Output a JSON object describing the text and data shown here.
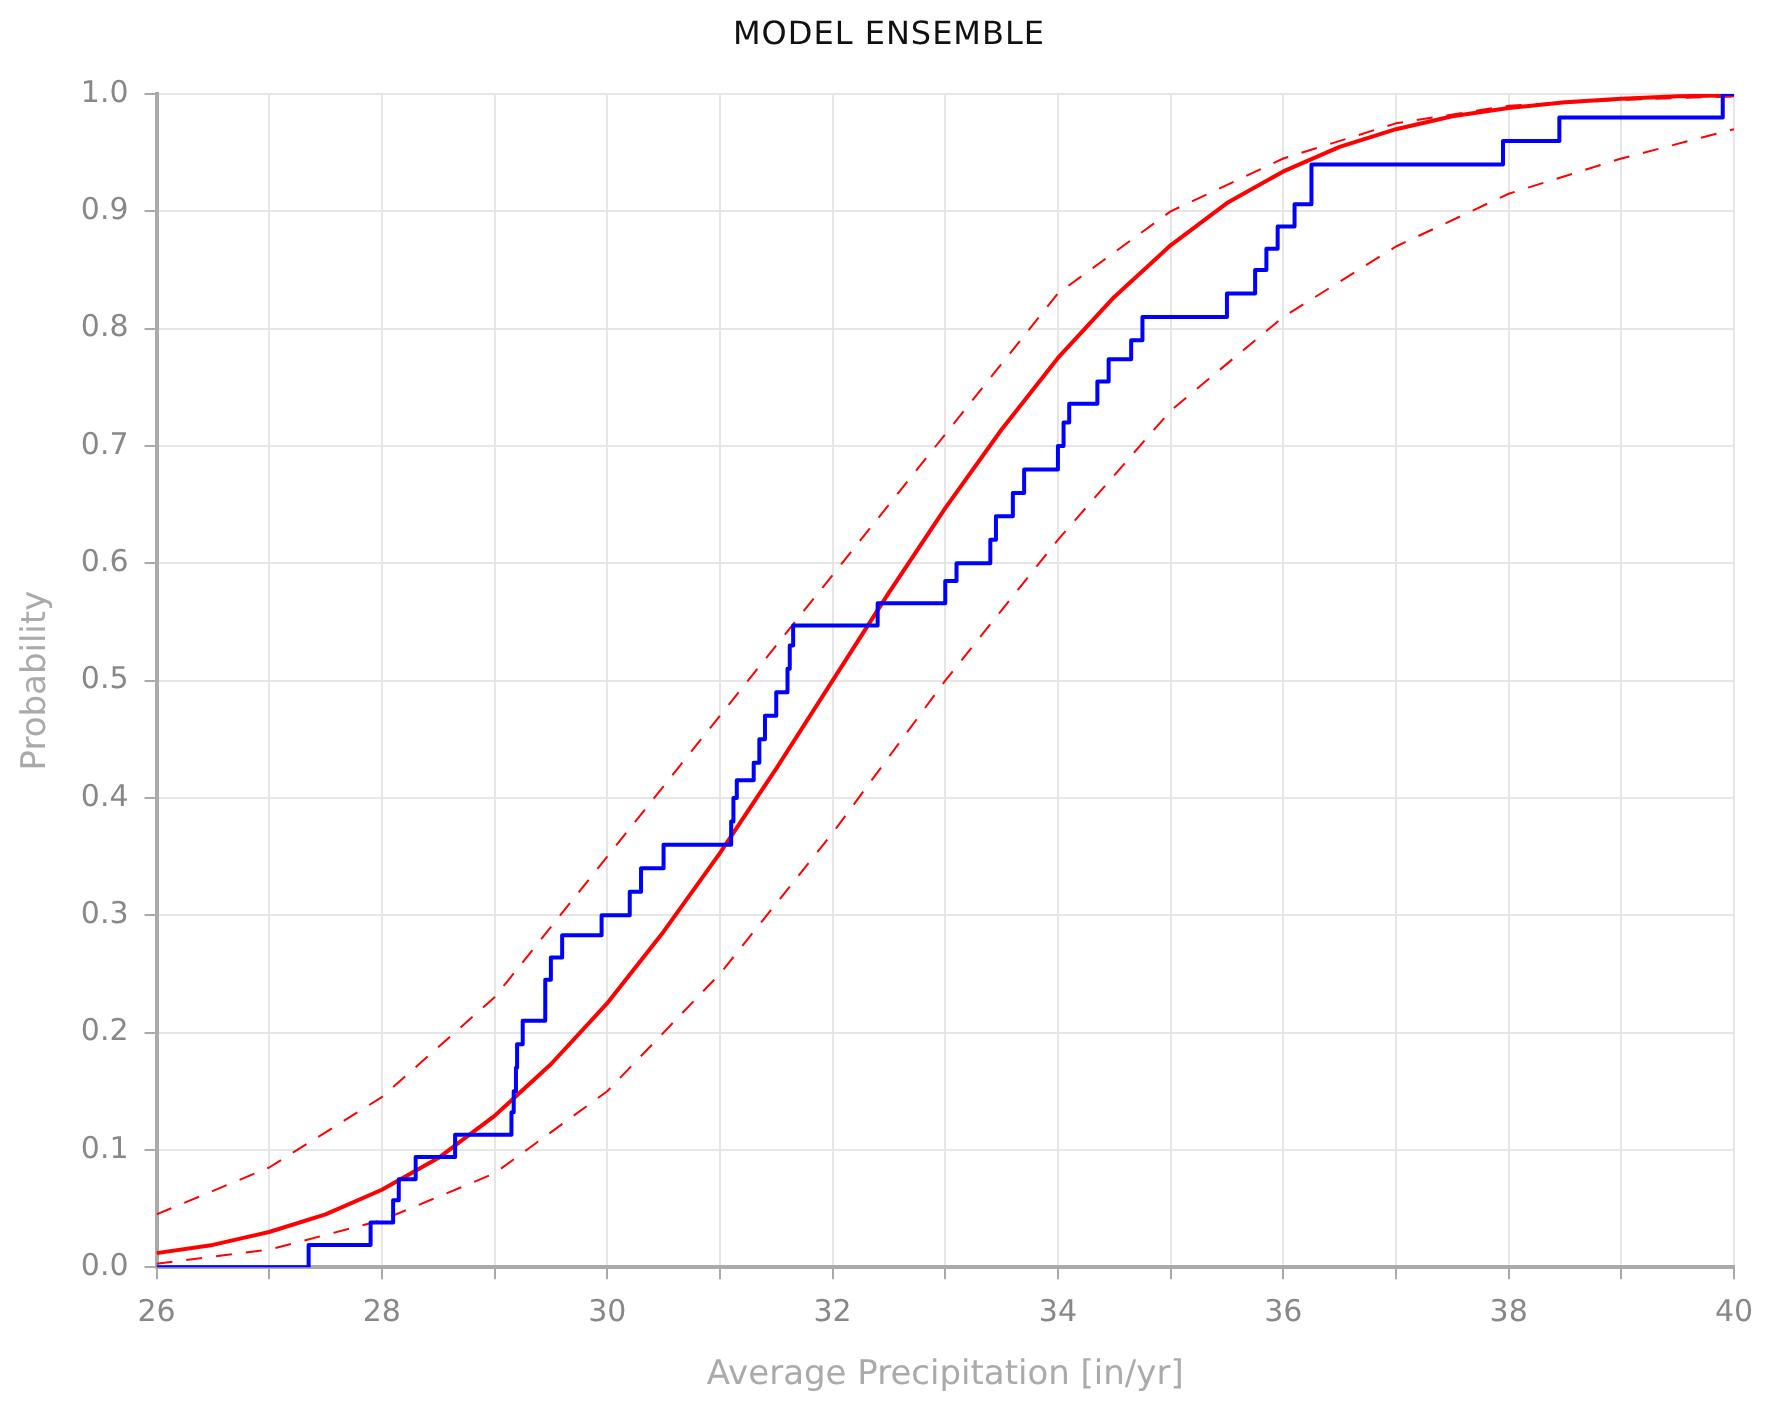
{
  "chart_data": {
    "type": "step",
    "title": "MODEL ENSEMBLE",
    "xlabel": "Average Precipitation [in/yr]",
    "ylabel": "Probability",
    "xlim": [
      26,
      40
    ],
    "ylim": [
      0,
      1
    ],
    "xticks": [
      26,
      {
        "value": 27,
        "label": null
      },
      28,
      {
        "value": 29,
        "label": null
      },
      30,
      {
        "value": 31,
        "label": null
      },
      32,
      {
        "value": 33,
        "label": null
      },
      34,
      {
        "value": 35,
        "label": null
      },
      36,
      {
        "value": 37,
        "label": null
      },
      38,
      {
        "value": 39,
        "label": null
      },
      40
    ],
    "yticks": [
      {
        "value": 0,
        "label": "0.0"
      },
      0.1,
      0.2,
      0.3,
      0.4,
      0.5,
      0.6,
      0.7,
      0.8,
      0.9,
      {
        "value": 1,
        "label": "1.0"
      }
    ],
    "grid": true,
    "legend": false,
    "marker": "none",
    "series": [
      {
        "color": "#0000ff",
        "line_style": "solid",
        "x": [
          26,
          27.35,
          27.9,
          28.1,
          28.15,
          28.3,
          28.65,
          29.15,
          29.17,
          29.19,
          29.2,
          29.25,
          29.45,
          29.5,
          29.6,
          29.95,
          30.2,
          30.3,
          30.5,
          31.1,
          31.12,
          31.15,
          31.3,
          31.35,
          31.4,
          31.5,
          31.6,
          31.62,
          31.65,
          32.4,
          33.0,
          33.1,
          33.4,
          33.45,
          33.6,
          33.7,
          34.0,
          34.05,
          34.1,
          34.35,
          34.45,
          34.65,
          34.75,
          35.5,
          35.75,
          35.85,
          35.95,
          36.1,
          36.25,
          37.95,
          38.45,
          39.9,
          40
        ],
        "values": [
          0,
          0.019,
          0.038,
          0.057,
          0.075,
          0.094,
          0.113,
          0.132,
          0.15,
          0.17,
          0.19,
          0.21,
          0.245,
          0.264,
          0.283,
          0.3,
          0.32,
          0.34,
          0.36,
          0.38,
          0.4,
          0.415,
          0.43,
          0.45,
          0.47,
          0.49,
          0.51,
          0.53,
          0.547,
          0.566,
          0.585,
          0.6,
          0.62,
          0.64,
          0.66,
          0.68,
          0.7,
          0.72,
          0.736,
          0.755,
          0.774,
          0.79,
          0.81,
          0.83,
          0.85,
          0.868,
          0.887,
          0.906,
          0.94,
          0.96,
          0.98,
          1.0,
          1.0
        ]
      },
      {
        "type": "line",
        "color": "#ff0000",
        "line_style": "solid",
        "x": [
          26,
          26.5,
          27,
          27.5,
          28,
          28.5,
          29,
          29.5,
          30,
          30.5,
          31,
          31.5,
          32,
          32.5,
          33,
          33.5,
          34,
          34.5,
          35,
          35.5,
          36,
          36.5,
          37,
          37.5,
          38,
          38.5,
          39,
          39.5,
          40
        ],
        "values": [
          0.012,
          0.019,
          0.03,
          0.045,
          0.066,
          0.093,
          0.129,
          0.173,
          0.225,
          0.286,
          0.353,
          0.425,
          0.5,
          0.575,
          0.647,
          0.714,
          0.775,
          0.827,
          0.871,
          0.907,
          0.934,
          0.955,
          0.97,
          0.981,
          0.988,
          0.993,
          0.996,
          0.998,
          0.999
        ]
      },
      {
        "type": "line",
        "color": "#ff0000",
        "line_style": "dashed",
        "x": [
          26,
          27,
          28,
          29,
          30,
          31,
          32,
          33,
          34,
          35,
          36,
          37,
          38,
          39,
          40
        ],
        "values": [
          0.003,
          0.015,
          0.04,
          0.08,
          0.15,
          0.25,
          0.37,
          0.5,
          0.62,
          0.73,
          0.81,
          0.87,
          0.915,
          0.945,
          0.97
        ]
      },
      {
        "type": "line",
        "color": "#ff0000",
        "line_style": "dashed",
        "x": [
          26,
          27,
          28,
          29,
          30,
          31,
          32,
          33,
          34,
          35,
          36,
          37,
          38,
          39,
          40
        ],
        "values": [
          0.045,
          0.085,
          0.145,
          0.23,
          0.35,
          0.47,
          0.59,
          0.71,
          0.83,
          0.9,
          0.945,
          0.975,
          0.99,
          0.995,
          0.998
        ]
      }
    ]
  }
}
